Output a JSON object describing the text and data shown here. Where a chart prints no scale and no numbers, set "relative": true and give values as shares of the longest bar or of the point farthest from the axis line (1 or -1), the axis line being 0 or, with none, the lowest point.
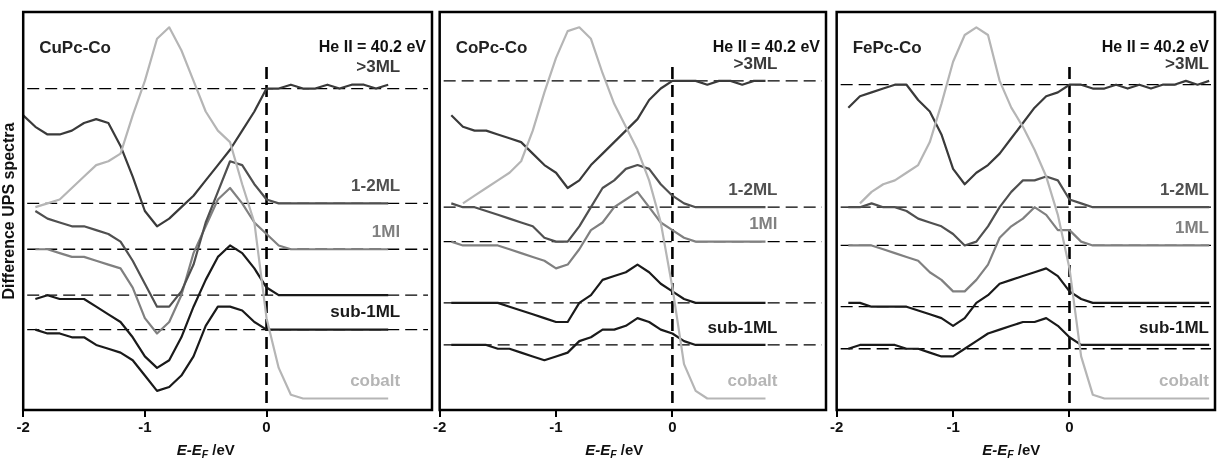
{
  "chart_data": [
    {
      "type": "line",
      "title": "CuPc-Co",
      "xlabel": "E-E$_{F}$ /eV",
      "ylabel": "Difference UPS spectra",
      "relative": true,
      "marker": "none",
      "tick_labels": "x",
      "xlim": [
        -2,
        1.36
      ],
      "xticks": [
        -2,
        -1,
        0
      ],
      "x": [
        -2,
        -1.9,
        -1.8,
        -1.7,
        -1.6,
        -1.5,
        -1.4,
        -1.3,
        -1.2,
        -1.1,
        -1,
        -0.9,
        -0.8,
        -0.7,
        -0.6,
        -0.5,
        -0.4,
        -0.3,
        -0.2,
        -0.1,
        0,
        0.1,
        0.2,
        0.3,
        0.4,
        0.5,
        0.6,
        0.7,
        0.8,
        0.9,
        1.0
      ],
      "series": [
        {
          "name": "cobalt",
          "color": "#b5b5b5",
          "values": [
            null,
            0.53,
            0.54,
            0.55,
            0.58,
            0.61,
            0.64,
            0.65,
            0.67,
            0.77,
            0.86,
            0.97,
            1.0,
            0.94,
            0.86,
            0.78,
            0.73,
            0.7,
            0.59,
            0.49,
            0.24,
            0.11,
            0.04,
            0.03,
            0.03,
            0.03,
            0.03,
            0.03,
            0.03,
            0.03,
            0.03
          ]
        },
        {
          "name": ">3ML",
          "color": "#3a3a3a",
          "values": [
            0.77,
            0.74,
            0.72,
            0.72,
            0.73,
            0.75,
            0.76,
            0.75,
            0.69,
            0.61,
            0.52,
            0.48,
            0.5,
            0.53,
            0.56,
            0.6,
            0.64,
            0.68,
            0.73,
            0.78,
            0.84,
            0.84,
            0.85,
            0.84,
            0.84,
            0.85,
            0.84,
            0.85,
            0.85,
            0.84,
            0.85
          ]
        },
        {
          "name": "1-2ML",
          "color": "#505050",
          "values": [
            null,
            0.52,
            0.5,
            0.49,
            0.48,
            0.48,
            0.47,
            0.46,
            0.44,
            0.39,
            0.33,
            0.27,
            0.27,
            0.31,
            0.38,
            0.49,
            0.57,
            0.65,
            0.64,
            0.59,
            0.55,
            0.54,
            0.54,
            0.54,
            0.54,
            0.54,
            0.54,
            0.54,
            0.54,
            0.54,
            0.54
          ]
        },
        {
          "name": "1Ml",
          "color": "#808080",
          "values": [
            null,
            0.42,
            0.42,
            0.41,
            0.4,
            0.4,
            0.39,
            0.38,
            0.37,
            0.32,
            0.24,
            0.2,
            0.23,
            0.3,
            0.41,
            0.48,
            0.55,
            0.58,
            0.54,
            0.49,
            0.46,
            0.43,
            0.42,
            0.42,
            0.42,
            0.42,
            0.42,
            0.42,
            0.42,
            0.42,
            0.42
          ]
        },
        {
          "color": "#1a1a1a",
          "values": [
            null,
            0.29,
            0.3,
            0.29,
            0.29,
            0.29,
            0.27,
            0.25,
            0.23,
            0.19,
            0.14,
            0.11,
            0.13,
            0.19,
            0.27,
            0.34,
            0.4,
            0.43,
            0.41,
            0.37,
            0.32,
            0.3,
            0.3,
            0.3,
            0.3,
            0.3,
            0.3,
            0.3,
            0.3,
            0.3,
            0.3
          ]
        },
        {
          "name": "sub-1ML",
          "color": "#1a1a1a",
          "values": [
            null,
            0.21,
            0.2,
            0.2,
            0.19,
            0.19,
            0.17,
            0.16,
            0.15,
            0.13,
            0.09,
            0.05,
            0.06,
            0.09,
            0.14,
            0.22,
            0.27,
            0.27,
            0.26,
            0.23,
            0.21,
            0.21,
            0.21,
            0.21,
            0.21,
            0.21,
            0.21,
            0.21,
            0.21,
            0.21,
            0.21
          ]
        }
      ],
      "ref_lines": [
        {
          "axis": "y",
          "value": 0.84,
          "line_style": "dashed"
        },
        {
          "axis": "y",
          "value": 0.54,
          "line_style": "dashed"
        },
        {
          "axis": "y",
          "value": 0.42,
          "line_style": "dashed"
        },
        {
          "axis": "y",
          "value": 0.3,
          "line_style": "dashed"
        },
        {
          "axis": "y",
          "value": 0.21,
          "line_style": "dashed"
        },
        {
          "axis": "x",
          "value": 0,
          "line_style": "dashed"
        }
      ],
      "annotations": [
        "He II = 40.2 eV"
      ]
    },
    {
      "type": "line",
      "title": "CoPc-Co",
      "xlabel": "E-E$_{F}$ /eV",
      "relative": true,
      "marker": "none",
      "tick_labels": "x",
      "xlim": [
        -2,
        1.32
      ],
      "xticks": [
        -2,
        -1,
        0
      ],
      "x": [
        -1.9,
        -1.8,
        -1.7,
        -1.6,
        -1.5,
        -1.4,
        -1.3,
        -1.2,
        -1.1,
        -1,
        -0.9,
        -0.8,
        -0.7,
        -0.6,
        -0.5,
        -0.4,
        -0.3,
        -0.2,
        -0.1,
        0,
        0.1,
        0.2,
        0.3,
        0.4,
        0.5,
        0.6,
        0.7,
        0.8
      ],
      "series": [
        {
          "name": "cobalt",
          "color": "#b5b5b5",
          "values": [
            null,
            0.54,
            0.56,
            0.58,
            0.6,
            0.62,
            0.65,
            0.73,
            0.83,
            0.92,
            0.99,
            1.0,
            0.97,
            0.88,
            0.8,
            0.74,
            0.68,
            0.6,
            0.49,
            0.32,
            0.12,
            0.05,
            0.03,
            0.03,
            0.03,
            0.03,
            0.03,
            0.03
          ]
        },
        {
          "name": ">3ML",
          "color": "#3a3a3a",
          "values": [
            0.77,
            0.74,
            0.73,
            0.73,
            0.72,
            0.71,
            0.7,
            0.67,
            0.64,
            0.62,
            0.58,
            0.6,
            0.64,
            0.67,
            0.7,
            0.73,
            0.76,
            0.81,
            0.84,
            0.86,
            0.86,
            0.86,
            0.85,
            0.86,
            0.86,
            0.85,
            0.86,
            0.86
          ]
        },
        {
          "name": "1-2ML",
          "color": "#505050",
          "values": [
            0.54,
            0.53,
            0.53,
            0.52,
            0.51,
            0.5,
            0.49,
            0.48,
            0.45,
            0.44,
            0.44,
            0.48,
            0.53,
            0.58,
            0.6,
            0.63,
            0.64,
            0.63,
            0.59,
            0.56,
            0.54,
            0.53,
            0.53,
            0.53,
            0.53,
            0.53,
            0.53,
            0.53
          ]
        },
        {
          "name": "1Ml",
          "color": "#808080",
          "values": [
            0.44,
            0.43,
            0.43,
            0.43,
            0.43,
            0.42,
            0.41,
            0.4,
            0.39,
            0.37,
            0.38,
            0.42,
            0.47,
            0.49,
            0.53,
            0.55,
            0.57,
            0.53,
            0.49,
            0.47,
            0.45,
            0.44,
            0.44,
            0.44,
            0.44,
            0.44,
            0.44,
            0.44
          ]
        },
        {
          "color": "#1a1a1a",
          "values": [
            0.28,
            0.28,
            0.28,
            0.28,
            0.28,
            0.27,
            0.26,
            0.25,
            0.24,
            0.23,
            0.23,
            0.28,
            0.3,
            0.34,
            0.35,
            0.36,
            0.38,
            0.36,
            0.33,
            0.31,
            0.29,
            0.28,
            0.28,
            0.28,
            0.28,
            0.28,
            0.28,
            0.28
          ]
        },
        {
          "name": "sub-1ML",
          "color": "#1a1a1a",
          "values": [
            0.17,
            0.17,
            0.17,
            0.17,
            0.16,
            0.16,
            0.15,
            0.14,
            0.13,
            0.14,
            0.15,
            0.18,
            0.19,
            0.21,
            0.21,
            0.22,
            0.24,
            0.23,
            0.21,
            0.2,
            0.18,
            0.17,
            0.17,
            0.17,
            0.17,
            0.17,
            0.17,
            0.17
          ]
        }
      ],
      "ref_lines": [
        {
          "axis": "y",
          "value": 0.86,
          "line_style": "dashed"
        },
        {
          "axis": "y",
          "value": 0.53,
          "line_style": "dashed"
        },
        {
          "axis": "y",
          "value": 0.44,
          "line_style": "dashed"
        },
        {
          "axis": "y",
          "value": 0.28,
          "line_style": "dashed"
        },
        {
          "axis": "y",
          "value": 0.17,
          "line_style": "dashed"
        },
        {
          "axis": "x",
          "value": 0,
          "line_style": "dashed"
        }
      ],
      "annotations": [
        "He II = 40.2 eV"
      ]
    },
    {
      "type": "line",
      "title": "FePc-Co",
      "xlabel": "E-E$_{F}$ /eV",
      "relative": true,
      "marker": "none",
      "tick_labels": "x",
      "xlim": [
        -2,
        1.25
      ],
      "xticks": [
        -2,
        -1,
        0
      ],
      "x": [
        -1.9,
        -1.8,
        -1.7,
        -1.6,
        -1.5,
        -1.4,
        -1.3,
        -1.2,
        -1.1,
        -1,
        -0.9,
        -0.8,
        -0.7,
        -0.6,
        -0.5,
        -0.4,
        -0.3,
        -0.2,
        -0.1,
        0,
        0.1,
        0.2,
        0.3,
        0.4,
        0.5,
        0.6,
        0.7,
        0.8,
        0.9,
        1.0,
        1.1,
        1.2
      ],
      "series": [
        {
          "name": "cobalt",
          "color": "#b5b5b5",
          "values": [
            null,
            0.54,
            0.57,
            0.59,
            0.6,
            0.62,
            0.64,
            0.7,
            0.8,
            0.91,
            0.98,
            1.0,
            0.98,
            0.86,
            0.79,
            0.74,
            0.68,
            0.61,
            0.51,
            0.37,
            0.14,
            0.04,
            0.03,
            0.03,
            0.03,
            0.03,
            0.03,
            0.03,
            0.03,
            0.03,
            0.03,
            0.03
          ]
        },
        {
          "name": ">3ML",
          "color": "#3a3a3a",
          "values": [
            0.79,
            0.82,
            0.83,
            0.84,
            0.85,
            0.85,
            0.81,
            0.78,
            0.72,
            0.63,
            0.59,
            0.62,
            0.64,
            0.67,
            0.71,
            0.75,
            0.79,
            0.82,
            0.83,
            0.85,
            0.85,
            0.84,
            0.84,
            0.85,
            0.84,
            0.85,
            0.84,
            0.85,
            0.85,
            0.86,
            0.85,
            0.86
          ]
        },
        {
          "name": "1-2ML",
          "color": "#505050",
          "values": [
            0.53,
            0.53,
            0.54,
            0.53,
            0.53,
            0.52,
            0.5,
            0.49,
            0.48,
            0.46,
            0.43,
            0.44,
            0.48,
            0.53,
            0.57,
            0.6,
            0.6,
            0.61,
            0.6,
            0.55,
            0.54,
            0.53,
            0.53,
            0.53,
            0.53,
            0.53,
            0.53,
            0.53,
            0.53,
            0.53,
            0.53,
            0.53
          ]
        },
        {
          "name": "1ML",
          "color": "#808080",
          "values": [
            0.43,
            0.43,
            0.43,
            0.42,
            0.41,
            0.4,
            0.39,
            0.36,
            0.34,
            0.31,
            0.31,
            0.34,
            0.38,
            0.45,
            0.48,
            0.5,
            0.53,
            0.51,
            0.47,
            0.47,
            0.44,
            0.43,
            0.43,
            0.43,
            0.43,
            0.43,
            0.43,
            0.43,
            0.43,
            0.43,
            0.43,
            0.43
          ]
        },
        {
          "color": "#1a1a1a",
          "values": [
            0.28,
            0.28,
            0.27,
            0.27,
            0.27,
            0.27,
            0.26,
            0.25,
            0.24,
            0.22,
            0.24,
            0.28,
            0.3,
            0.33,
            0.34,
            0.35,
            0.36,
            0.37,
            0.35,
            0.31,
            0.29,
            0.28,
            0.28,
            0.28,
            0.28,
            0.28,
            0.28,
            0.28,
            0.28,
            0.28,
            0.28,
            0.28
          ]
        },
        {
          "name": "sub-1ML",
          "color": "#1a1a1a",
          "values": [
            0.16,
            0.17,
            0.17,
            0.17,
            0.17,
            0.16,
            0.16,
            0.15,
            0.14,
            0.14,
            0.16,
            0.18,
            0.2,
            0.21,
            0.22,
            0.23,
            0.23,
            0.24,
            0.22,
            0.19,
            0.17,
            0.17,
            0.17,
            0.17,
            0.17,
            0.17,
            0.17,
            0.17,
            0.17,
            0.17,
            0.17,
            0.17
          ]
        }
      ],
      "ref_lines": [
        {
          "axis": "y",
          "value": 0.85,
          "line_style": "dashed"
        },
        {
          "axis": "y",
          "value": 0.53,
          "line_style": "dashed"
        },
        {
          "axis": "y",
          "value": 0.43,
          "line_style": "dashed"
        },
        {
          "axis": "y",
          "value": 0.27,
          "line_style": "dashed"
        },
        {
          "axis": "y",
          "value": 0.16,
          "line_style": "dashed"
        },
        {
          "axis": "x",
          "value": 0,
          "line_style": "dashed"
        }
      ],
      "annotations": [
        "He II = 40.2 eV"
      ]
    }
  ]
}
